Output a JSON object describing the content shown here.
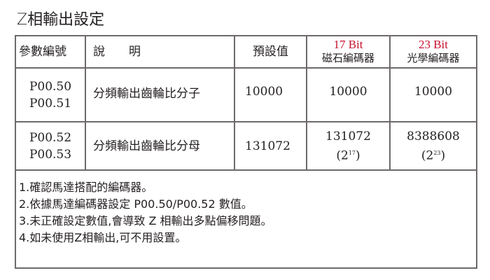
{
  "title": "Z相輸出設定",
  "table": {
    "headers": {
      "param": "參數編號",
      "desc": "說　　明",
      "default": "預設值",
      "col17_bit": "17 Bit",
      "col17_name": "磁石編碼器",
      "col23_bit": "23 Bit",
      "col23_name": "光學編碼器"
    },
    "rows": [
      {
        "param1": "P00.50",
        "param2": "P00.51",
        "desc": "分頻輸出齒輪比分子",
        "default": "10000",
        "v17": "10000",
        "v23": "10000"
      },
      {
        "param1": "P00.52",
        "param2": "P00.53",
        "desc": "分頻輸出齒輪比分母",
        "default": "131072",
        "v17": "131072",
        "v17_base": "(2",
        "v17_exp": "17",
        "v23": "8388608",
        "v23_base": "(2",
        "v23_exp": "23",
        "close": ")"
      }
    ],
    "accent_color": "#c8102e"
  },
  "notes": [
    "1.確認馬達搭配的編碼器。",
    "2.依據馬達編碼器設定 P00.50/P00.52 數值。",
    "3.未正確設定數值,會導致 Z 相輸出多點偏移問題。",
    "4.如未使用Z相輸出,可不用設置。"
  ]
}
